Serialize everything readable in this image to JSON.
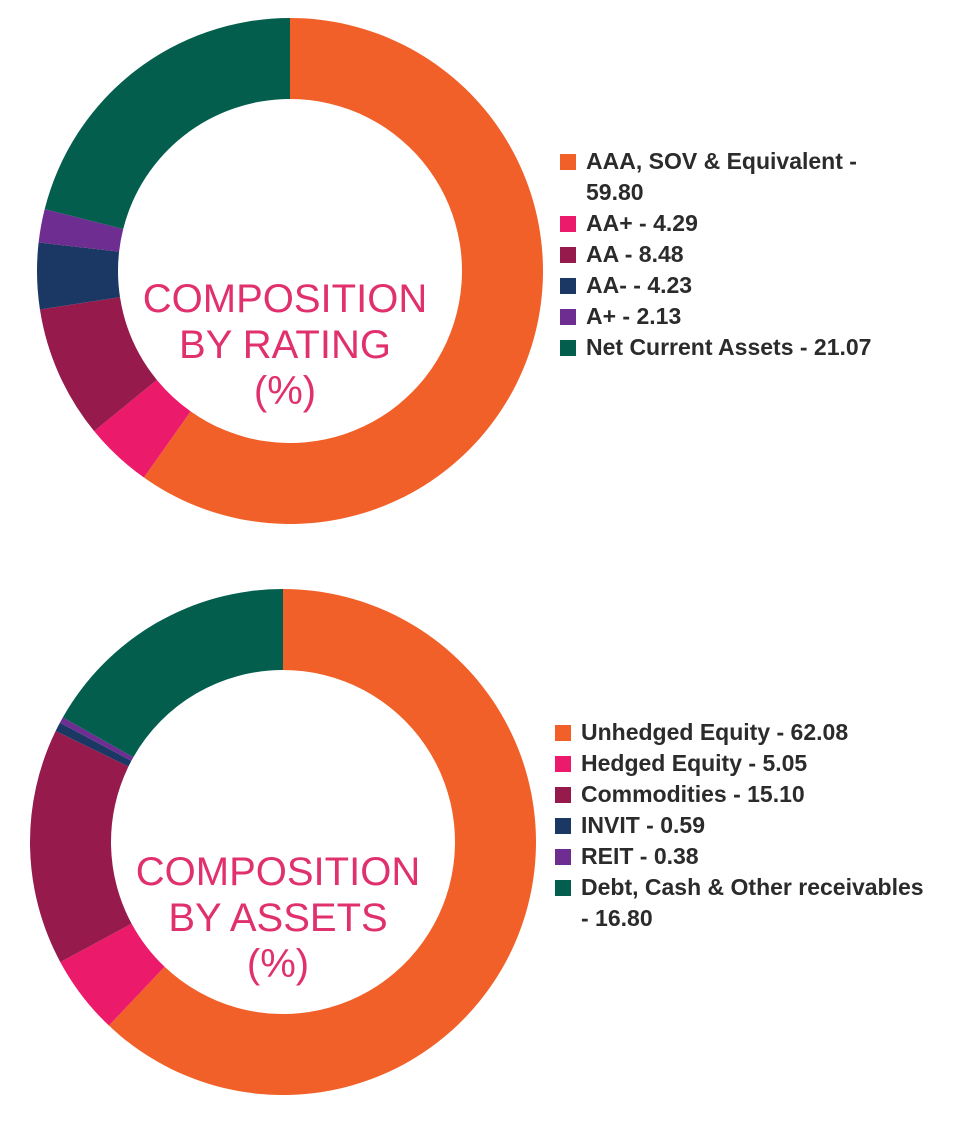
{
  "chart_data": [
    {
      "type": "pie",
      "title_lines": [
        "COMPOSITION",
        "BY RATING",
        "(%)"
      ],
      "series": [
        {
          "name": "AAA, SOV & Equivalent",
          "value": 59.8,
          "color": "#f26029",
          "legend_lines": [
            "AAA, SOV & Equivalent -",
            "59.80"
          ]
        },
        {
          "name": "AA+",
          "value": 4.29,
          "color": "#ec1a6a",
          "legend_lines": [
            "AA+ - 4.29"
          ]
        },
        {
          "name": "AA",
          "value": 8.48,
          "color": "#961a4c",
          "legend_lines": [
            "AA - 8.48"
          ]
        },
        {
          "name": "AA-",
          "value": 4.23,
          "color": "#1b3864",
          "legend_lines": [
            "AA- - 4.23"
          ]
        },
        {
          "name": "A+",
          "value": 2.13,
          "color": "#6e2d91",
          "legend_lines": [
            "A+ - 2.13"
          ]
        },
        {
          "name": "Net Current Assets",
          "value": 21.07,
          "color": "#035e4d",
          "legend_lines": [
            "Net Current Assets - 21.07"
          ]
        }
      ]
    },
    {
      "type": "pie",
      "title_lines": [
        "COMPOSITION",
        "BY ASSETS",
        "(%)"
      ],
      "series": [
        {
          "name": "Unhedged Equity",
          "value": 62.08,
          "color": "#f26029",
          "legend_lines": [
            "Unhedged Equity - 62.08"
          ]
        },
        {
          "name": "Hedged Equity",
          "value": 5.05,
          "color": "#ec1a6a",
          "legend_lines": [
            "Hedged Equity - 5.05"
          ]
        },
        {
          "name": "Commodities",
          "value": 15.1,
          "color": "#961a4c",
          "legend_lines": [
            "Commodities - 15.10"
          ]
        },
        {
          "name": "INVIT",
          "value": 0.59,
          "color": "#1b3864",
          "legend_lines": [
            "INVIT - 0.59"
          ]
        },
        {
          "name": "REIT",
          "value": 0.38,
          "color": "#6e2d91",
          "legend_lines": [
            "REIT - 0.38"
          ]
        },
        {
          "name": "Debt, Cash & Other receivables",
          "value": 16.8,
          "color": "#035e4d",
          "legend_lines": [
            "Debt, Cash & Other receivables",
            "- 16.80"
          ]
        }
      ]
    }
  ]
}
